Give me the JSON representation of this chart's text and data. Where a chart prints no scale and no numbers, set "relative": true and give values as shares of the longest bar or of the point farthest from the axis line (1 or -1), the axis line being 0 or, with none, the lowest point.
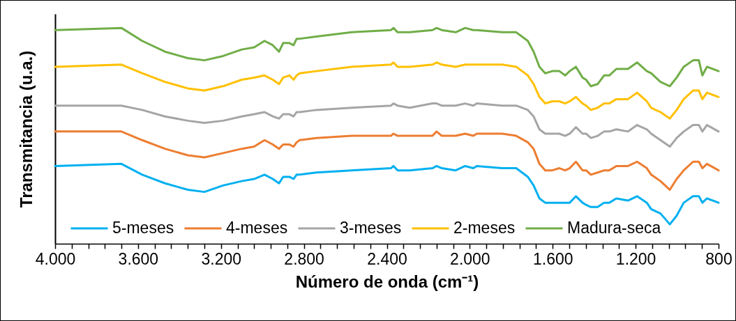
{
  "chart_data": {
    "type": "line",
    "relative": true,
    "xlabel": "Número de onda (cm⁻¹)",
    "ylabel": "Transmitancia (u.a.)",
    "legend": "bottom",
    "xlim": [
      4000,
      800
    ],
    "xticks": [
      {
        "value": 4000,
        "label": "4.000"
      },
      {
        "value": 3920,
        "label": null
      },
      {
        "value": 3840,
        "label": null
      },
      {
        "value": 3760,
        "label": null
      },
      {
        "value": 3680,
        "label": null
      },
      {
        "value": 3600,
        "label": "3.600"
      },
      {
        "value": 3520,
        "label": null
      },
      {
        "value": 3440,
        "label": null
      },
      {
        "value": 3360,
        "label": null
      },
      {
        "value": 3280,
        "label": null
      },
      {
        "value": 3200,
        "label": "3.200"
      },
      {
        "value": 3120,
        "label": null
      },
      {
        "value": 3040,
        "label": null
      },
      {
        "value": 2960,
        "label": null
      },
      {
        "value": 2880,
        "label": null
      },
      {
        "value": 2800,
        "label": "2.800"
      },
      {
        "value": 2720,
        "label": null
      },
      {
        "value": 2640,
        "label": null
      },
      {
        "value": 2560,
        "label": null
      },
      {
        "value": 2480,
        "label": null
      },
      {
        "value": 2400,
        "label": "2.400"
      },
      {
        "value": 2320,
        "label": null
      },
      {
        "value": 2240,
        "label": null
      },
      {
        "value": 2160,
        "label": null
      },
      {
        "value": 2080,
        "label": null
      },
      {
        "value": 2000,
        "label": "2.000"
      },
      {
        "value": 1920,
        "label": null
      },
      {
        "value": 1840,
        "label": null
      },
      {
        "value": 1760,
        "label": null
      },
      {
        "value": 1680,
        "label": null
      },
      {
        "value": 1600,
        "label": "1.600"
      },
      {
        "value": 1520,
        "label": null
      },
      {
        "value": 1440,
        "label": null
      },
      {
        "value": 1360,
        "label": null
      },
      {
        "value": 1280,
        "label": null
      },
      {
        "value": 1200,
        "label": "1.200"
      },
      {
        "value": 1120,
        "label": null
      },
      {
        "value": 1040,
        "label": null
      },
      {
        "value": 960,
        "label": null
      },
      {
        "value": 880,
        "label": null
      },
      800
    ],
    "x": [
      4000,
      3680,
      3580,
      3470,
      3360,
      3280,
      3190,
      3100,
      3040,
      2990,
      2950,
      2920,
      2900,
      2870,
      2850,
      2835,
      2820,
      2740,
      2570,
      2380,
      2368,
      2348,
      2290,
      2180,
      2160,
      2135,
      2068,
      2022,
      1983,
      1966,
      1843,
      1776,
      1720,
      1692,
      1664,
      1636,
      1602,
      1568,
      1540,
      1518,
      1488,
      1456,
      1439,
      1416,
      1383,
      1352,
      1327,
      1293,
      1237,
      1193,
      1146,
      1125,
      1080,
      1035,
      1002,
      968,
      923,
      895,
      878,
      856,
      800
    ],
    "series": [
      {
        "name": "5-meses",
        "color": "#00b0f0",
        "values": [
          0.36,
          0.37,
          0.32,
          0.28,
          0.25,
          0.24,
          0.27,
          0.29,
          0.3,
          0.32,
          0.3,
          0.28,
          0.31,
          0.31,
          0.3,
          0.32,
          0.32,
          0.33,
          0.34,
          0.35,
          0.36,
          0.34,
          0.34,
          0.35,
          0.36,
          0.35,
          0.34,
          0.36,
          0.35,
          0.36,
          0.35,
          0.35,
          0.31,
          0.27,
          0.21,
          0.19,
          0.19,
          0.19,
          0.19,
          0.19,
          0.22,
          0.19,
          0.18,
          0.17,
          0.17,
          0.19,
          0.19,
          0.21,
          0.2,
          0.22,
          0.19,
          0.16,
          0.14,
          0.09,
          0.13,
          0.19,
          0.22,
          0.22,
          0.19,
          0.21,
          0.19
        ]
      },
      {
        "name": "4-meses",
        "color": "#ed7d31",
        "values": [
          0.52,
          0.52,
          0.48,
          0.44,
          0.41,
          0.4,
          0.42,
          0.44,
          0.45,
          0.48,
          0.46,
          0.44,
          0.46,
          0.46,
          0.45,
          0.47,
          0.48,
          0.49,
          0.5,
          0.5,
          0.51,
          0.5,
          0.5,
          0.5,
          0.52,
          0.5,
          0.5,
          0.51,
          0.5,
          0.51,
          0.51,
          0.5,
          0.47,
          0.44,
          0.37,
          0.34,
          0.34,
          0.35,
          0.34,
          0.35,
          0.38,
          0.34,
          0.34,
          0.32,
          0.33,
          0.34,
          0.34,
          0.36,
          0.36,
          0.38,
          0.35,
          0.32,
          0.29,
          0.25,
          0.3,
          0.34,
          0.38,
          0.38,
          0.35,
          0.37,
          0.34
        ]
      },
      {
        "name": "3-meses",
        "color": "#a5a5a5",
        "values": [
          0.64,
          0.64,
          0.62,
          0.59,
          0.57,
          0.56,
          0.57,
          0.59,
          0.6,
          0.61,
          0.59,
          0.58,
          0.6,
          0.6,
          0.59,
          0.61,
          0.61,
          0.62,
          0.63,
          0.64,
          0.65,
          0.64,
          0.63,
          0.65,
          0.65,
          0.64,
          0.64,
          0.65,
          0.64,
          0.65,
          0.64,
          0.64,
          0.62,
          0.59,
          0.53,
          0.51,
          0.51,
          0.51,
          0.5,
          0.51,
          0.54,
          0.51,
          0.51,
          0.49,
          0.5,
          0.52,
          0.52,
          0.53,
          0.52,
          0.55,
          0.53,
          0.51,
          0.48,
          0.45,
          0.49,
          0.52,
          0.55,
          0.55,
          0.52,
          0.55,
          0.52
        ]
      },
      {
        "name": "2-meses",
        "color": "#ffc000",
        "values": [
          0.82,
          0.83,
          0.79,
          0.75,
          0.72,
          0.71,
          0.73,
          0.76,
          0.77,
          0.78,
          0.76,
          0.74,
          0.77,
          0.78,
          0.76,
          0.78,
          0.79,
          0.8,
          0.82,
          0.83,
          0.84,
          0.82,
          0.82,
          0.83,
          0.84,
          0.83,
          0.82,
          0.83,
          0.83,
          0.83,
          0.83,
          0.82,
          0.78,
          0.74,
          0.68,
          0.65,
          0.66,
          0.66,
          0.65,
          0.66,
          0.68,
          0.65,
          0.64,
          0.62,
          0.63,
          0.65,
          0.65,
          0.67,
          0.67,
          0.7,
          0.66,
          0.63,
          0.61,
          0.58,
          0.62,
          0.67,
          0.71,
          0.71,
          0.67,
          0.7,
          0.68
        ]
      },
      {
        "name": "Madura-seca",
        "color": "#70ad47",
        "values": [
          0.99,
          1.0,
          0.94,
          0.89,
          0.86,
          0.85,
          0.87,
          0.9,
          0.91,
          0.94,
          0.92,
          0.89,
          0.93,
          0.93,
          0.92,
          0.95,
          0.95,
          0.96,
          0.98,
          0.99,
          1.0,
          0.98,
          0.98,
          0.99,
          1.0,
          0.99,
          0.98,
          1.0,
          0.99,
          0.99,
          0.98,
          0.98,
          0.94,
          0.89,
          0.82,
          0.79,
          0.8,
          0.8,
          0.78,
          0.8,
          0.82,
          0.77,
          0.76,
          0.73,
          0.74,
          0.78,
          0.78,
          0.81,
          0.81,
          0.84,
          0.8,
          0.79,
          0.75,
          0.73,
          0.77,
          0.82,
          0.85,
          0.85,
          0.78,
          0.82,
          0.8
        ]
      }
    ]
  }
}
